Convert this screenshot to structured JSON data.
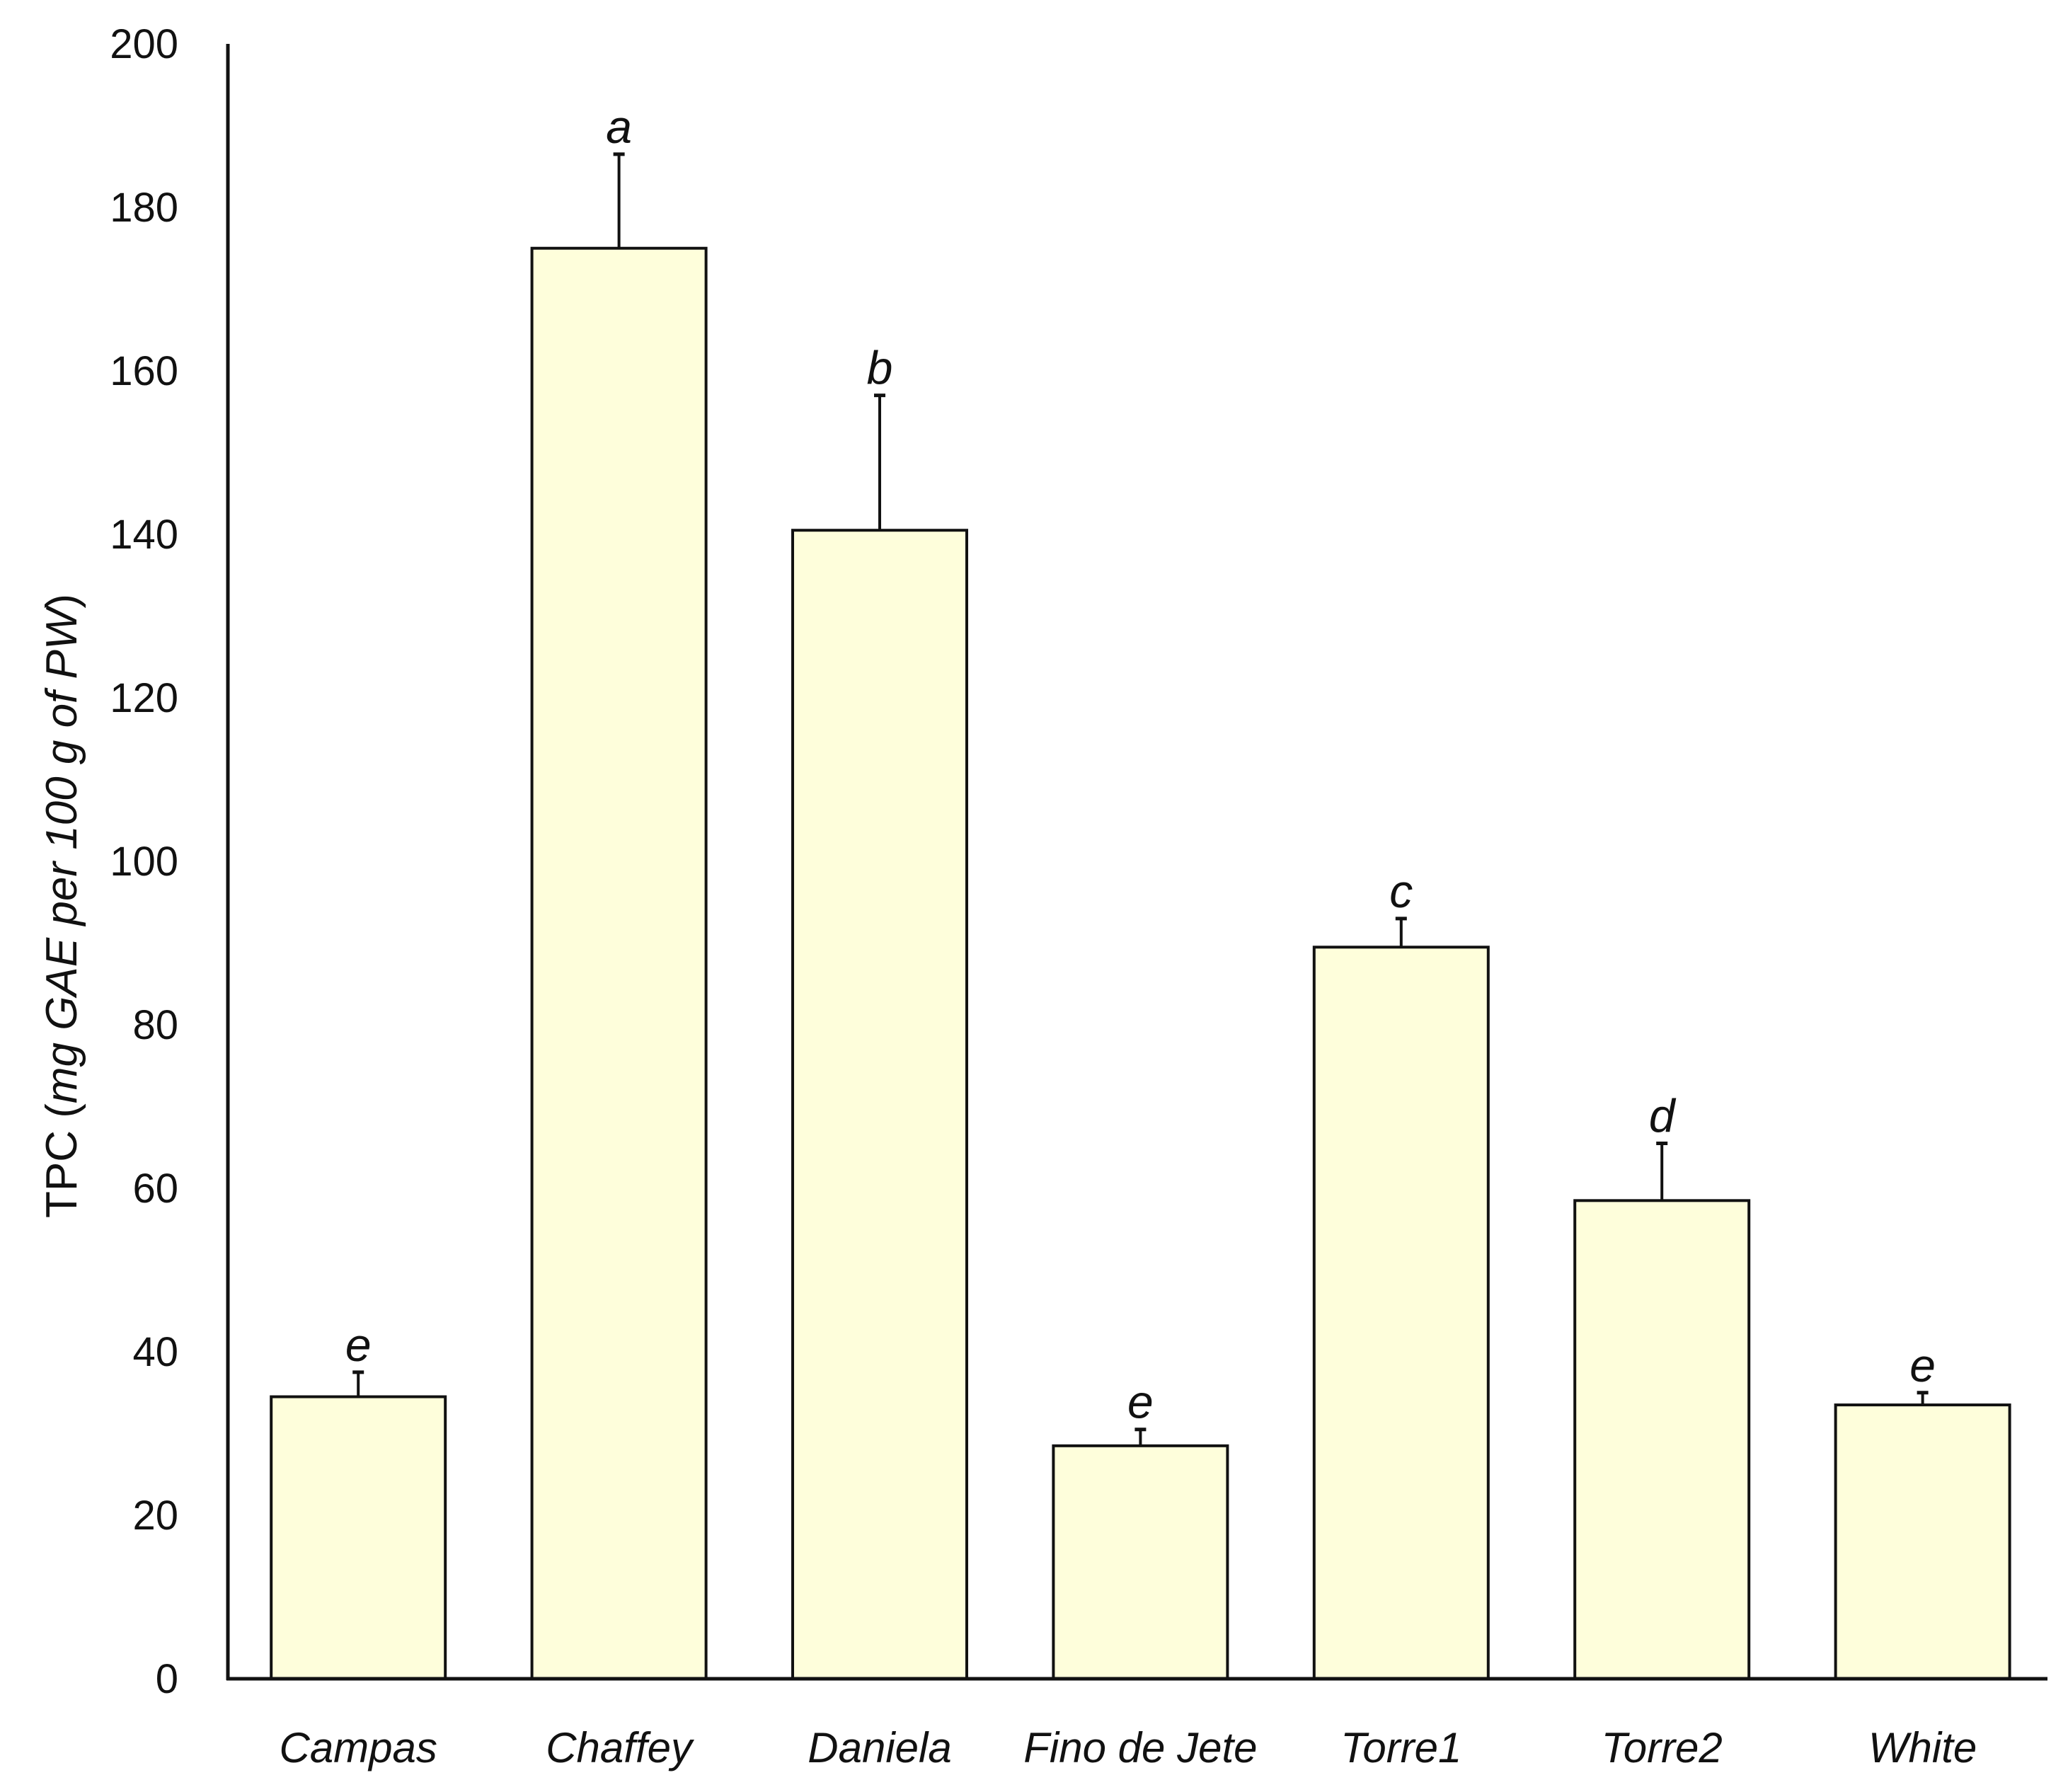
{
  "chart_data": {
    "type": "bar",
    "categories": [
      "Campas",
      "Chaffey",
      "Daniela",
      "Fino de Jete",
      "Torre1",
      "Torre2",
      "White"
    ],
    "values": [
      34.5,
      175,
      140.5,
      28.5,
      89.5,
      58.5,
      33.5
    ],
    "errors": [
      3,
      11.5,
      16.5,
      2,
      3.5,
      7,
      1.5
    ],
    "significance": [
      "e",
      "a",
      "b",
      "e",
      "c",
      "d",
      "e"
    ],
    "ylabel_prefix": "TPC (",
    "ylabel_italic": "mg GAE per 100 g of PW",
    "ylabel_suffix": ")",
    "ylim": [
      0,
      200
    ],
    "yticks": [
      0,
      20,
      40,
      60,
      80,
      100,
      120,
      140,
      160,
      180,
      200
    ],
    "grid": false,
    "legend": "none",
    "colors": {
      "bar_fill": "#FEFEDB",
      "bar_stroke": "#111111",
      "axis": "#111111"
    }
  }
}
